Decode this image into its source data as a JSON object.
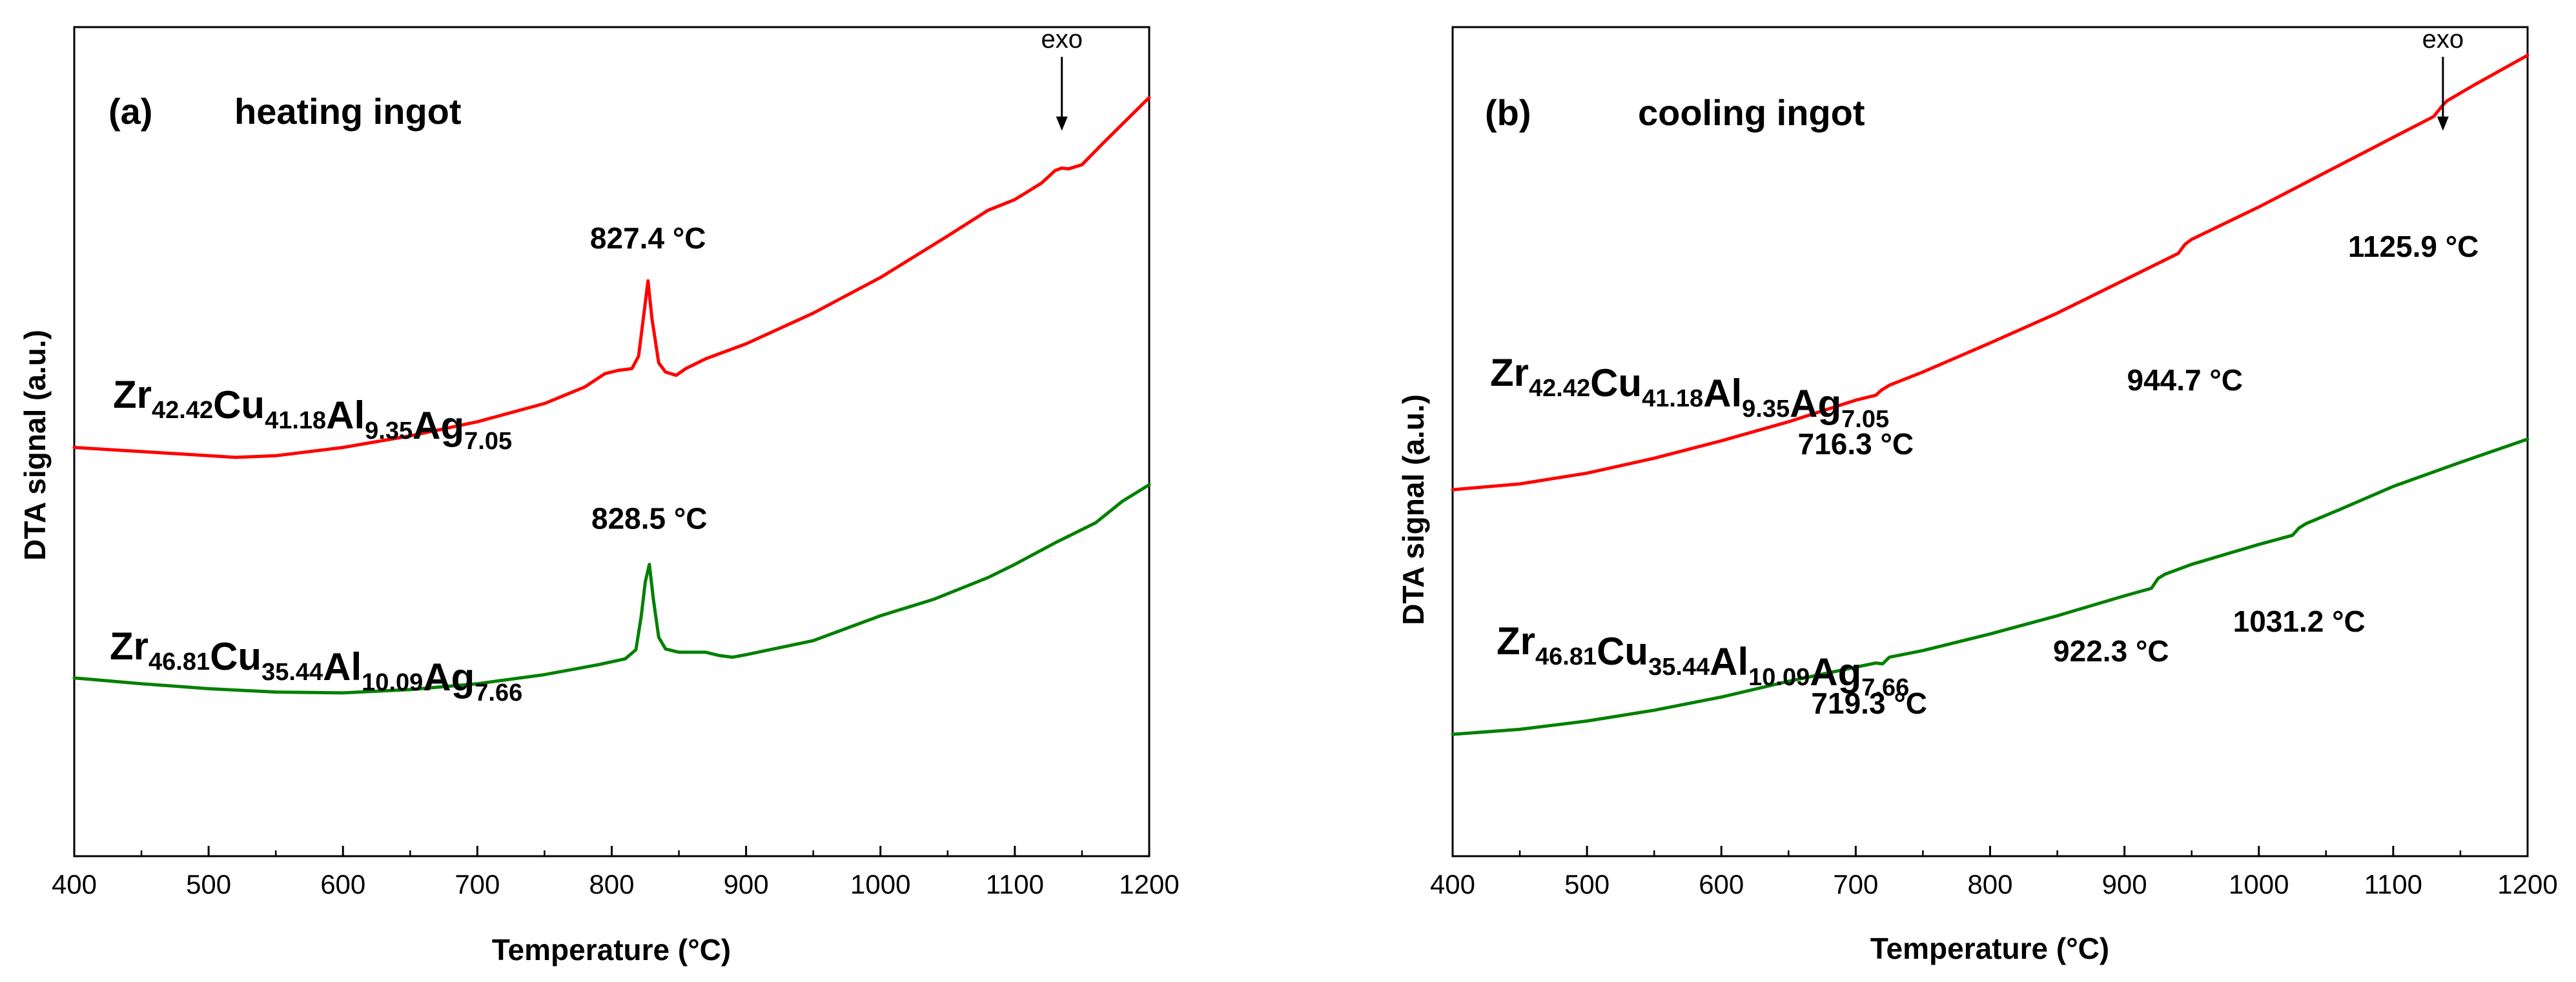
{
  "chart_data": [
    {
      "type": "line",
      "panel_label": "(a)",
      "title": "heating ingot",
      "xlabel": "Temperature (°C)",
      "ylabel": "DTA signal (a.u.)",
      "xlim": [
        400,
        1200
      ],
      "ylim": [
        0,
        100
      ],
      "xticks": [
        400,
        500,
        600,
        700,
        800,
        900,
        1000,
        1100,
        1200
      ],
      "y_tick_labels": false,
      "series": [
        {
          "name": "Zr42.42Cu41.18Al9.35Ag7.05",
          "formula": [
            {
              "el": "Zr",
              "sub": "42.42"
            },
            {
              "el": "Cu",
              "sub": "41.18"
            },
            {
              "el": "Al",
              "sub": "9.35"
            },
            {
              "el": "Ag",
              "sub": "7.05"
            }
          ],
          "color": "#ff0000",
          "x": [
            400,
            450,
            500,
            520,
            550,
            600,
            650,
            700,
            750,
            780,
            795,
            805,
            815,
            820,
            824,
            827,
            830,
            835,
            840,
            848,
            855,
            870,
            900,
            950,
            1000,
            1050,
            1080,
            1100,
            1120,
            1130,
            1135,
            1140,
            1150,
            1165,
            1180,
            1200
          ],
          "y": [
            49.3,
            48.8,
            48.3,
            48.1,
            48.3,
            49.3,
            50.7,
            52.4,
            54.6,
            56.6,
            58.2,
            58.6,
            58.8,
            60.3,
            65.5,
            69.4,
            64.8,
            59.5,
            58.4,
            58.0,
            58.8,
            60.0,
            61.8,
            65.5,
            69.8,
            74.8,
            77.9,
            79.2,
            81.2,
            82.7,
            83.0,
            82.9,
            83.4,
            85.9,
            88.3,
            91.5
          ]
        },
        {
          "name": "Zr46.81Cu35.44Al10.09Ag7.66",
          "formula": [
            {
              "el": "Zr",
              "sub": "46.81"
            },
            {
              "el": "Cu",
              "sub": "35.44"
            },
            {
              "el": "Al",
              "sub": "10.09"
            },
            {
              "el": "Ag",
              "sub": "7.66"
            }
          ],
          "color": "#008000",
          "x": [
            400,
            450,
            500,
            550,
            600,
            650,
            700,
            750,
            790,
            810,
            818,
            822,
            825,
            828,
            831,
            835,
            840,
            850,
            870,
            880,
            890,
            900,
            950,
            1000,
            1040,
            1080,
            1100,
            1130,
            1160,
            1180,
            1200
          ],
          "y": [
            21.5,
            20.8,
            20.2,
            19.8,
            19.7,
            20.1,
            20.8,
            21.9,
            23.1,
            23.8,
            24.9,
            29.0,
            33.1,
            35.2,
            31.0,
            26.4,
            25.0,
            24.6,
            24.6,
            24.2,
            24.0,
            24.3,
            26.0,
            29.0,
            31.0,
            33.6,
            35.2,
            37.8,
            40.2,
            42.8,
            44.8
          ]
        }
      ],
      "annotations": [
        {
          "text": "827.4 °C",
          "x": 827,
          "y": 73.3
        },
        {
          "text": "828.5 °C",
          "x": 828,
          "y": 39.5
        },
        {
          "text": "exo",
          "x": 1135,
          "y": 97.5,
          "arrow_to_y": 87.5
        }
      ]
    },
    {
      "type": "line",
      "panel_label": "(b)",
      "title": "cooling ingot",
      "xlabel": "Temperature (°C)",
      "ylabel": "DTA signal (a.u.)",
      "xlim": [
        400,
        1200
      ],
      "ylim": [
        0,
        100
      ],
      "xticks": [
        400,
        500,
        600,
        700,
        800,
        900,
        1000,
        1100,
        1200
      ],
      "y_tick_labels": false,
      "series": [
        {
          "name": "Zr42.42Cu41.18Al9.35Ag7.05",
          "formula": [
            {
              "el": "Zr",
              "sub": "42.42"
            },
            {
              "el": "Cu",
              "sub": "41.18"
            },
            {
              "el": "Al",
              "sub": "9.35"
            },
            {
              "el": "Ag",
              "sub": "7.05"
            }
          ],
          "color": "#ff0000",
          "x": [
            400,
            450,
            500,
            550,
            600,
            650,
            700,
            715,
            719,
            722,
            725,
            750,
            800,
            850,
            900,
            940,
            945,
            950,
            1000,
            1050,
            1100,
            1130,
            1137,
            1140,
            1160,
            1180,
            1200
          ],
          "y": [
            44.2,
            44.9,
            46.2,
            48.0,
            50.1,
            52.4,
            55.0,
            55.6,
            56.2,
            56.5,
            56.8,
            58.4,
            61.9,
            65.5,
            69.5,
            72.7,
            73.8,
            74.4,
            78.3,
            82.5,
            86.7,
            89.2,
            90.6,
            91.1,
            93.0,
            94.8,
            96.6
          ]
        },
        {
          "name": "Zr46.81Cu35.44Al10.09Ag7.66",
          "formula": [
            {
              "el": "Zr",
              "sub": "46.81"
            },
            {
              "el": "Cu",
              "sub": "35.44"
            },
            {
              "el": "Al",
              "sub": "10.09"
            },
            {
              "el": "Ag",
              "sub": "7.66"
            }
          ],
          "color": "#008000",
          "x": [
            400,
            450,
            500,
            550,
            600,
            650,
            700,
            715,
            720,
            725,
            750,
            800,
            850,
            900,
            920,
            925,
            930,
            950,
            1000,
            1025,
            1030,
            1035,
            1060,
            1100,
            1150,
            1200
          ],
          "y": [
            14.7,
            15.3,
            16.3,
            17.6,
            19.2,
            21.1,
            22.8,
            23.3,
            23.2,
            24.0,
            24.8,
            26.8,
            29.0,
            31.4,
            32.3,
            33.5,
            34.0,
            35.2,
            37.6,
            38.7,
            39.6,
            40.1,
            41.8,
            44.6,
            47.5,
            50.3
          ]
        }
      ],
      "annotations": [
        {
          "text": "716.3 °C",
          "x": 700,
          "y": 48.5
        },
        {
          "text": "944.7 °C",
          "x": 945,
          "y": 56.2
        },
        {
          "text": "1125.9 °C",
          "x": 1115,
          "y": 72.3
        },
        {
          "text": "719.3 °C",
          "x": 710,
          "y": 17.2
        },
        {
          "text": "922.3 °C",
          "x": 890,
          "y": 23.5
        },
        {
          "text": "1031.2 °C",
          "x": 1030,
          "y": 27.1
        },
        {
          "text": "exo",
          "x": 1137,
          "y": 97.5,
          "arrow_to_y": 87.5
        }
      ]
    }
  ]
}
